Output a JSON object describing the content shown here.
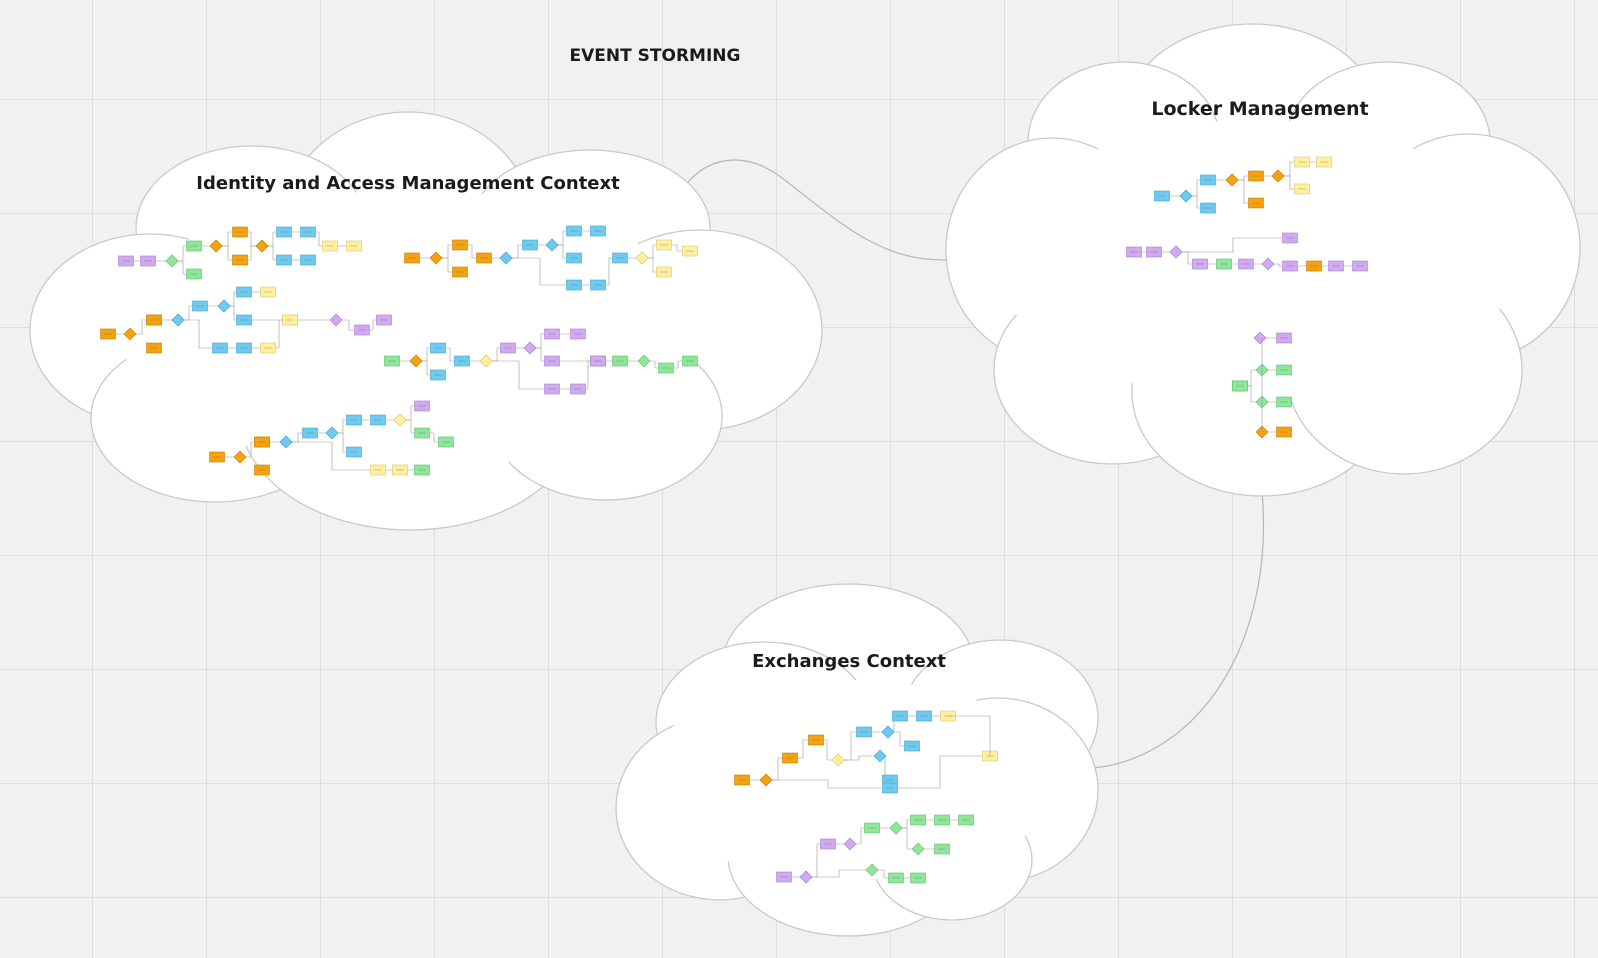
{
  "board": {
    "title": "EVENT STORMING"
  },
  "contexts": {
    "identity": {
      "title": "Identity and Access Management Context"
    },
    "locker": {
      "title": "Locker Management"
    },
    "exchanges": {
      "title": "Exchanges Context"
    }
  },
  "colors": {
    "background": "#f1f1f1",
    "grid": "#dedede",
    "cloud_fill": "#ffffff",
    "cloud_stroke": "#c9c9c9",
    "connector": "#b5b5b5",
    "domain_event": "#f4a30f",
    "command": "#6ecbef",
    "policy": "#cfaaf0",
    "read_model": "#8fe69a",
    "aggregate": "#fff0a0"
  },
  "sticky_types": [
    "domain_event",
    "command",
    "policy",
    "read_model",
    "aggregate"
  ]
}
